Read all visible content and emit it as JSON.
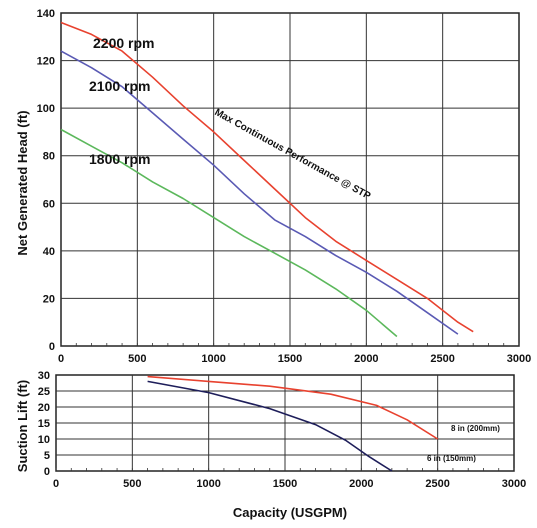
{
  "chart_data": [
    {
      "type": "line",
      "title": "",
      "xlabel": "",
      "ylabel": "Net Generated Head  (ft)",
      "xlim": [
        0,
        3000
      ],
      "ylim": [
        0,
        140
      ],
      "xticks": [
        "0",
        "500",
        "1000",
        "1500",
        "2000",
        "2500",
        "3000"
      ],
      "yticks": [
        "0",
        "20",
        "40",
        "60",
        "80",
        "100",
        "120",
        "140"
      ],
      "grid": true,
      "legend": "none",
      "series": [
        {
          "name": "2200 rpm",
          "color": "#e8422f",
          "x": [
            0,
            200,
            400,
            600,
            800,
            1000,
            1200,
            1400,
            1600,
            1800,
            2000,
            2200,
            2400,
            2600,
            2700
          ],
          "y": [
            136,
            131,
            124,
            113,
            101,
            90,
            78,
            66,
            54,
            44,
            36,
            28,
            20,
            10,
            6
          ]
        },
        {
          "name": "2100 rpm",
          "color": "#5a5ab4",
          "x": [
            0,
            200,
            400,
            600,
            800,
            1000,
            1200,
            1400,
            1600,
            1800,
            2000,
            2200,
            2400,
            2600
          ],
          "y": [
            124,
            117,
            109,
            98,
            87,
            76,
            64,
            53,
            46,
            38,
            31,
            23,
            14,
            5
          ]
        },
        {
          "name": "1800 rpm",
          "color": "#5cb85c",
          "x": [
            0,
            200,
            400,
            600,
            800,
            1000,
            1200,
            1400,
            1600,
            1800,
            2000,
            2200
          ],
          "y": [
            91,
            84,
            77,
            69,
            62,
            54,
            46,
            39,
            32,
            24,
            15,
            4
          ]
        }
      ],
      "annotations": [
        {
          "text": "Max Continuous Performance @ STP"
        }
      ]
    },
    {
      "type": "line",
      "title": "",
      "xlabel": "Capacity (USGPM)",
      "ylabel": "Suction Lift (ft)",
      "xlim": [
        0,
        3000
      ],
      "ylim": [
        0,
        30
      ],
      "xticks": [
        "0",
        "500",
        "1000",
        "1500",
        "2000",
        "2500",
        "3000"
      ],
      "yticks": [
        "0",
        "5",
        "10",
        "15",
        "20",
        "25",
        "30"
      ],
      "grid": true,
      "legend": "none",
      "series": [
        {
          "name": "8 in (200mm)",
          "color": "#e8422f",
          "x": [
            600,
            1000,
            1400,
            1800,
            2100,
            2300,
            2500
          ],
          "y": [
            29.5,
            28,
            26.5,
            24,
            20.5,
            16,
            10
          ]
        },
        {
          "name": "6 in (150mm)",
          "color": "#1e1e5a",
          "x": [
            600,
            1000,
            1400,
            1700,
            1900,
            2050,
            2200
          ],
          "y": [
            28,
            24.5,
            19.5,
            14.5,
            9.5,
            4.5,
            0
          ]
        }
      ]
    }
  ]
}
